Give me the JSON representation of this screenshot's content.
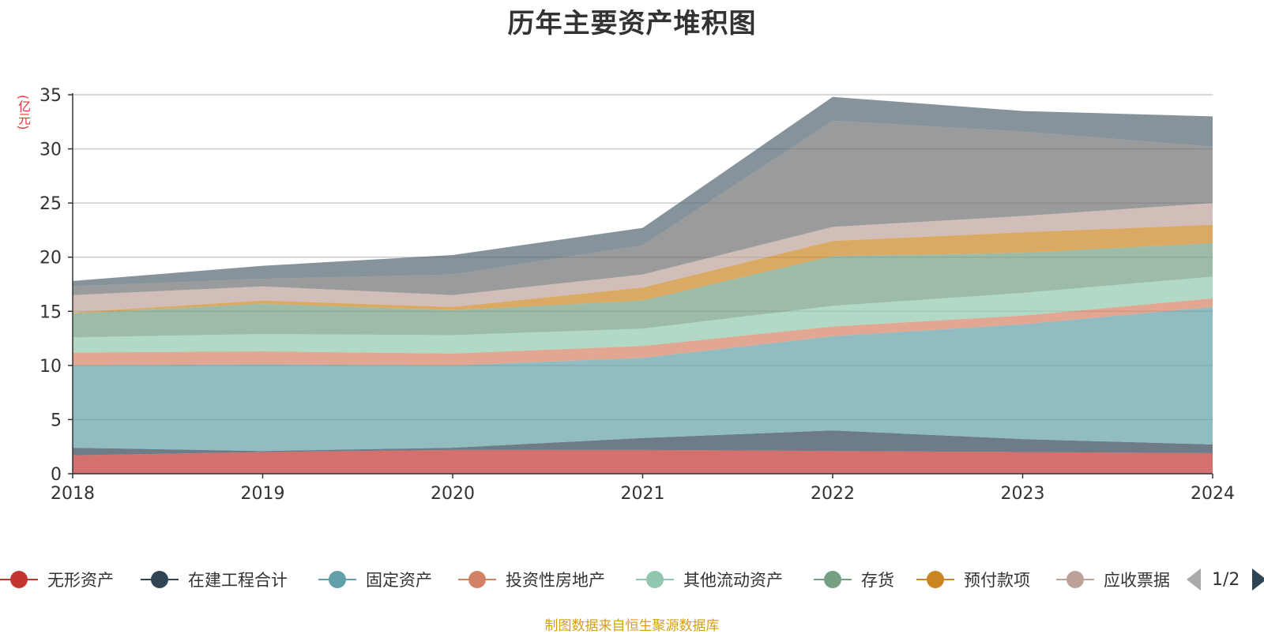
{
  "title": "历年主要资产堆积图",
  "unit": "(亿元)",
  "source_note": "制图数据来自恒生聚源数据库",
  "legend_page": "1/2",
  "chart_data": {
    "type": "area",
    "stacked": true,
    "title": "历年主要资产堆积图",
    "ylabel": "(亿元)",
    "ylim": [
      0,
      35
    ],
    "yticks": [
      0,
      5,
      10,
      15,
      20,
      25,
      30,
      35
    ],
    "categories": [
      "2018",
      "2019",
      "2020",
      "2021",
      "2022",
      "2023",
      "2024"
    ],
    "grid": true,
    "legend_position": "bottom",
    "series": [
      {
        "name": "无形资产",
        "color": "#c23531",
        "values": [
          1.7,
          2.0,
          2.2,
          2.2,
          2.1,
          2.0,
          1.9
        ]
      },
      {
        "name": "在建工程合计",
        "color": "#2f4554",
        "values": [
          0.7,
          0.1,
          0.2,
          1.1,
          1.9,
          1.2,
          0.8
        ]
      },
      {
        "name": "固定资产",
        "color": "#61a0a8",
        "values": [
          7.6,
          8.0,
          7.6,
          7.4,
          8.7,
          10.6,
          12.7
        ]
      },
      {
        "name": "投资性房地产",
        "color": "#d48265",
        "values": [
          1.2,
          1.2,
          1.1,
          1.1,
          0.9,
          0.8,
          0.8
        ]
      },
      {
        "name": "其他流动资产",
        "color": "#91c7ae",
        "values": [
          1.4,
          1.6,
          1.7,
          1.6,
          1.9,
          2.1,
          2.0
        ]
      },
      {
        "name": "存货",
        "color": "#749f83",
        "values": [
          2.2,
          2.8,
          2.3,
          2.6,
          4.6,
          3.7,
          3.1
        ]
      },
      {
        "name": "预付款项",
        "color": "#ca8622",
        "values": [
          0.1,
          0.3,
          0.3,
          1.2,
          1.4,
          1.9,
          1.7
        ]
      },
      {
        "name": "应收票据",
        "color": "#bda29a",
        "values": [
          1.6,
          1.3,
          1.1,
          1.2,
          1.3,
          1.5,
          2.0
        ]
      },
      {
        "name": "",
        "color": "#6e7074",
        "values": [
          0.8,
          0.7,
          1.9,
          2.7,
          9.8,
          7.8,
          5.2
        ]
      },
      {
        "name": "",
        "color": "#546570",
        "values": [
          0.5,
          1.2,
          1.8,
          1.6,
          2.2,
          1.9,
          2.8
        ]
      }
    ]
  }
}
